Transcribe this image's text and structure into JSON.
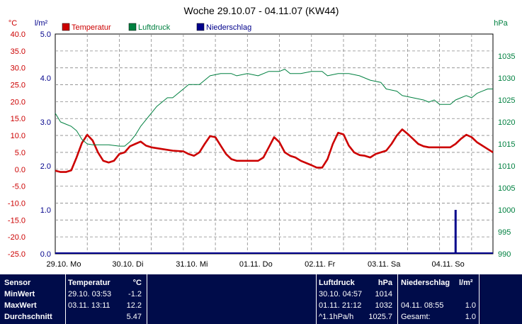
{
  "chart_data": {
    "type": "line",
    "title": "Woche 29.10.07 - 04.11.07 (KW44)",
    "x_labels": [
      "29.10. Mo",
      "30.10. Di",
      "31.10. Mi",
      "01.11. Do",
      "02.11. Fr",
      "03.11. Sa",
      "04.11. So"
    ],
    "xlim_hours": [
      0,
      164
    ],
    "grid": true,
    "axes": {
      "temp": {
        "unit": "°C",
        "min": -25,
        "max": 40,
        "step": 5,
        "ticks": [
          "40.0",
          "35.0",
          "30.0",
          "25.0",
          "20.0",
          "15.0",
          "10.0",
          "5.0",
          "0.0",
          "-5.0",
          "-10.0",
          "-15.0",
          "-20.0",
          "-25.0"
        ]
      },
      "rain": {
        "unit": "l/m²",
        "min": 0,
        "max": 5,
        "step": 1,
        "ticks": [
          "5.0",
          "4.0",
          "3.0",
          "2.0",
          "1.0",
          "0.0"
        ]
      },
      "pressure": {
        "unit": "hPa",
        "min": 990,
        "max": 1040,
        "step": 5,
        "ticks": [
          "1035",
          "1030",
          "1025",
          "1020",
          "1015",
          "1010",
          "1005",
          "1000",
          "995",
          "990"
        ]
      }
    },
    "series": [
      {
        "name": "Temperatur",
        "axis": "temp",
        "color": "#cc0000",
        "points": [
          [
            0,
            -0.4
          ],
          [
            2,
            -0.8
          ],
          [
            4,
            -0.8
          ],
          [
            6,
            -0.3
          ],
          [
            8,
            3.5
          ],
          [
            10,
            7.8
          ],
          [
            12,
            10.2
          ],
          [
            14,
            8.5
          ],
          [
            16,
            5
          ],
          [
            18,
            2.5
          ],
          [
            20,
            2
          ],
          [
            22,
            2.5
          ],
          [
            24,
            4.5
          ],
          [
            26,
            5
          ],
          [
            28,
            6.8
          ],
          [
            30,
            7.5
          ],
          [
            32,
            8.2
          ],
          [
            34,
            7
          ],
          [
            36,
            6.5
          ],
          [
            40,
            6
          ],
          [
            44,
            5.5
          ],
          [
            48,
            5.3
          ],
          [
            50,
            4.5
          ],
          [
            52,
            4
          ],
          [
            54,
            5
          ],
          [
            56,
            7.5
          ],
          [
            58,
            9.8
          ],
          [
            60,
            9.5
          ],
          [
            62,
            7
          ],
          [
            64,
            4.5
          ],
          [
            66,
            3
          ],
          [
            68,
            2.5
          ],
          [
            72,
            2.5
          ],
          [
            76,
            2.5
          ],
          [
            78,
            3.5
          ],
          [
            80,
            6.5
          ],
          [
            82,
            9.5
          ],
          [
            84,
            8
          ],
          [
            86,
            5
          ],
          [
            88,
            4
          ],
          [
            90,
            3.5
          ],
          [
            92,
            2.5
          ],
          [
            96,
            1.2
          ],
          [
            98,
            0.5
          ],
          [
            100,
            0.5
          ],
          [
            102,
            3
          ],
          [
            104,
            7.5
          ],
          [
            106,
            10.8
          ],
          [
            108,
            10.3
          ],
          [
            110,
            7
          ],
          [
            112,
            5
          ],
          [
            114,
            4.2
          ],
          [
            116,
            4
          ],
          [
            118,
            3.5
          ],
          [
            120,
            4.5
          ],
          [
            124,
            5.5
          ],
          [
            126,
            7.5
          ],
          [
            128,
            10
          ],
          [
            130,
            11.8
          ],
          [
            132,
            10.5
          ],
          [
            134,
            9
          ],
          [
            136,
            7.5
          ],
          [
            138,
            6.8
          ],
          [
            140,
            6.5
          ],
          [
            144,
            6.5
          ],
          [
            148,
            6.5
          ],
          [
            150,
            7.5
          ],
          [
            152,
            9
          ],
          [
            154,
            10.2
          ],
          [
            156,
            9.5
          ],
          [
            158,
            8
          ],
          [
            160,
            7
          ],
          [
            162,
            6
          ],
          [
            164,
            5
          ]
        ]
      },
      {
        "name": "Luftdruck",
        "axis": "pressure",
        "color": "#008040",
        "points": [
          [
            0,
            1022
          ],
          [
            2,
            1020
          ],
          [
            4,
            1019.5
          ],
          [
            6,
            1019
          ],
          [
            8,
            1018
          ],
          [
            10,
            1016
          ],
          [
            12,
            1015
          ],
          [
            14,
            1014.8
          ],
          [
            16,
            1014.8
          ],
          [
            20,
            1014.8
          ],
          [
            24,
            1014.5
          ],
          [
            26,
            1014.5
          ],
          [
            28,
            1015.5
          ],
          [
            30,
            1017
          ],
          [
            32,
            1019
          ],
          [
            34,
            1020.5
          ],
          [
            36,
            1022
          ],
          [
            38,
            1023.5
          ],
          [
            40,
            1024.5
          ],
          [
            42,
            1025.5
          ],
          [
            44,
            1025.5
          ],
          [
            46,
            1026.5
          ],
          [
            48,
            1027.5
          ],
          [
            50,
            1028.5
          ],
          [
            54,
            1028.5
          ],
          [
            56,
            1029.5
          ],
          [
            58,
            1030.5
          ],
          [
            62,
            1031
          ],
          [
            66,
            1031
          ],
          [
            68,
            1030.5
          ],
          [
            72,
            1031
          ],
          [
            76,
            1030.5
          ],
          [
            80,
            1031.5
          ],
          [
            84,
            1031.5
          ],
          [
            86,
            1032
          ],
          [
            88,
            1031
          ],
          [
            92,
            1031
          ],
          [
            96,
            1031.5
          ],
          [
            100,
            1031.5
          ],
          [
            102,
            1030.5
          ],
          [
            106,
            1031
          ],
          [
            110,
            1031
          ],
          [
            114,
            1030.5
          ],
          [
            118,
            1029.5
          ],
          [
            122,
            1029
          ],
          [
            124,
            1027.5
          ],
          [
            128,
            1027
          ],
          [
            130,
            1026
          ],
          [
            134,
            1025.5
          ],
          [
            138,
            1025
          ],
          [
            140,
            1024.5
          ],
          [
            142,
            1025
          ],
          [
            144,
            1024
          ],
          [
            148,
            1024
          ],
          [
            150,
            1025
          ],
          [
            152,
            1025.5
          ],
          [
            154,
            1026
          ],
          [
            156,
            1025.5
          ],
          [
            158,
            1026.5
          ],
          [
            160,
            1027
          ],
          [
            162,
            1027.5
          ],
          [
            164,
            1027.5
          ]
        ]
      },
      {
        "name": "Niederschlag",
        "axis": "rain",
        "color": "#00008b",
        "bars": [
          [
            150,
            1.0
          ]
        ]
      }
    ]
  },
  "table": {
    "headers": {
      "sensor": "Sensor",
      "temp": "Temperatur",
      "temp_unit": "°C",
      "press": "Luftdruck",
      "press_unit": "hPa",
      "rain": "Niederschlag",
      "rain_unit": "l/m²"
    },
    "min": {
      "label": "MinWert",
      "temp_time": "29.10.  03:53",
      "temp_val": "-1.2",
      "press_time": "30.10.  04:57",
      "press_val": "1014"
    },
    "max": {
      "label": "MaxWert",
      "temp_time": "03.11.  13:11",
      "temp_val": "12.2",
      "press_time": "01.11.  21:12",
      "press_val": "1032",
      "rain_time": "04.11.  08:55",
      "rain_val": "1.0"
    },
    "avg": {
      "label": "Durchschnitt",
      "temp_val": "5.47",
      "press_trend": "^1.1hPa/h",
      "press_val": "1025.7",
      "rain_total_label": "Gesamt:",
      "rain_total": "1.0"
    }
  }
}
